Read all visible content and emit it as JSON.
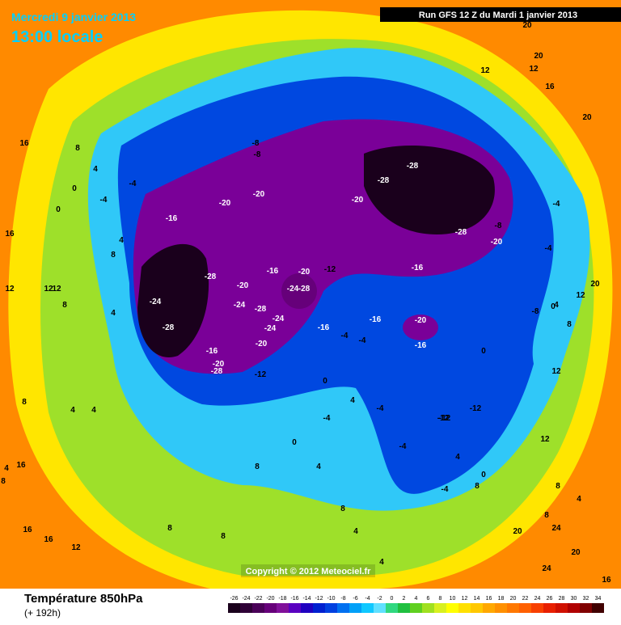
{
  "header": {
    "date": "Mercredi 9 janvier 2013",
    "time": "13:00 locale",
    "run": "Run GFS 12 Z du Mardi 1 janvier 2013"
  },
  "map": {
    "copyright": "Copyright © 2012 Meteociel.fr",
    "contour_labels": [
      20,
      20,
      20,
      16,
      12,
      12,
      16,
      16,
      12,
      8,
      4,
      4,
      0,
      -4,
      -4,
      0,
      4,
      8,
      8,
      4,
      12,
      12,
      8,
      4,
      -8,
      -20,
      -16,
      -20,
      -20,
      -28,
      -24,
      -28,
      -20,
      -28,
      -28,
      -28,
      -24,
      -28,
      -20,
      -16,
      -20,
      -16,
      -12,
      -8,
      -24,
      -28,
      -20,
      -24,
      -24,
      -28,
      -16,
      -20,
      -12,
      -16,
      -16,
      -20,
      -16,
      -4,
      -4,
      0,
      -4,
      -4,
      -8,
      -4,
      0,
      4,
      -4,
      -12,
      -12,
      0,
      4,
      8,
      4,
      12,
      12,
      8,
      12,
      4,
      0,
      -8,
      -4,
      4,
      0,
      -4,
      4,
      8,
      8,
      16,
      16,
      16,
      12,
      8,
      8,
      4,
      24,
      20,
      20,
      24,
      8,
      4,
      -12,
      16,
      20,
      8,
      8
    ]
  },
  "footer": {
    "title": "Température 850hPa",
    "lead": "(+ 192h)",
    "colorbar": {
      "ticks": [
        -26,
        -24,
        -22,
        -20,
        -18,
        -16,
        -14,
        -12,
        -10,
        -8,
        -6,
        -4,
        -2,
        0,
        2,
        4,
        6,
        8,
        10,
        12,
        14,
        16,
        18,
        20,
        22,
        24,
        26,
        28,
        30,
        32,
        34
      ],
      "colors": [
        "#1a001c",
        "#2e0036",
        "#4a0058",
        "#66007a",
        "#80109a",
        "#5a00c0",
        "#2000c0",
        "#0020d0",
        "#0040e0",
        "#0070f0",
        "#00a0f8",
        "#10c8ff",
        "#60e0ff",
        "#30d880",
        "#20c040",
        "#60d020",
        "#a0e020",
        "#d8f020",
        "#ffff00",
        "#ffe000",
        "#ffc800",
        "#ffa800",
        "#ff9000",
        "#ff7800",
        "#ff6000",
        "#f84000",
        "#e82000",
        "#d01000",
        "#b00000",
        "#800000",
        "#400000"
      ]
    }
  }
}
